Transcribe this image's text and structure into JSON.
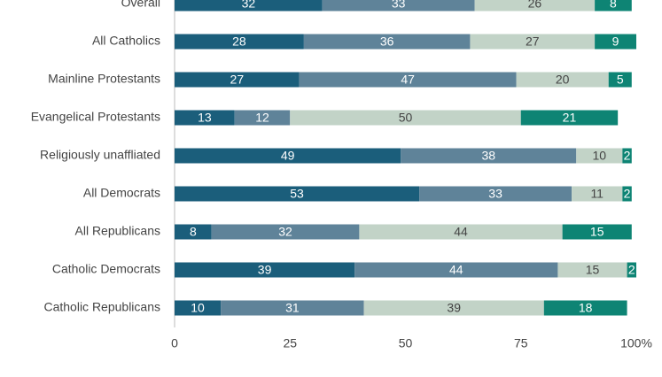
{
  "chart_data": {
    "type": "stacked_bar_horizontal",
    "categories": [
      "Overall",
      "All Catholics",
      "Mainline Protestants",
      "Evangelical Protestants",
      "Religiously unaffliated",
      "All Democrats",
      "All Republicans",
      "Catholic Democrats",
      "Catholic Republicans"
    ],
    "series": [
      {
        "color": "#1b5e7b",
        "values": [
          32,
          28,
          27,
          13,
          49,
          53,
          8,
          39,
          10
        ]
      },
      {
        "color": "#5f8399",
        "values": [
          33,
          36,
          47,
          12,
          38,
          33,
          32,
          44,
          31
        ]
      },
      {
        "color": "#c2d3c7",
        "values": [
          26,
          27,
          20,
          50,
          10,
          11,
          44,
          15,
          39
        ]
      },
      {
        "color": "#0e8474",
        "values": [
          8,
          9,
          5,
          21,
          2,
          2,
          15,
          2,
          18
        ]
      }
    ],
    "xlim": [
      0,
      100
    ],
    "xticks": [
      0,
      25,
      50,
      75,
      {
        "value": 100,
        "label": "100%"
      }
    ]
  }
}
